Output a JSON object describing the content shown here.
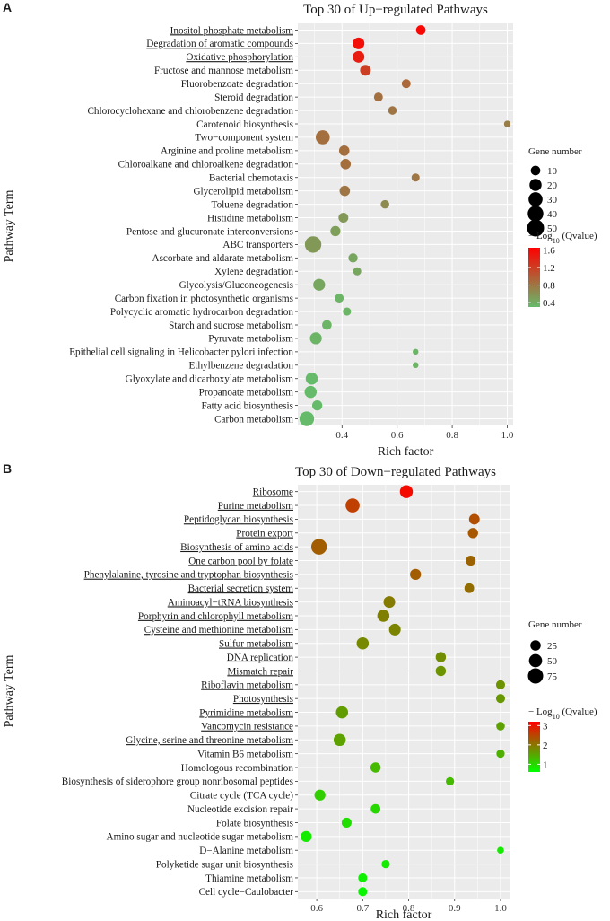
{
  "figure": {
    "colors": {
      "panel_bg": "#EBEBEB",
      "grid": "#FFFFFF"
    },
    "chart_data": [
      {
        "panel_label": "A",
        "type": "scatter",
        "title": "Top 30 of Up−regulated Pathways",
        "xlabel": "Rich factor",
        "ylabel": "Pathway Term",
        "xlim": [
          0.2395,
          1.0212
        ],
        "xticks": [
          0.4,
          0.6,
          0.8,
          1.0
        ],
        "xtick_labels": [
          "0.4",
          "0.6",
          "0.8",
          "1.0"
        ],
        "color_low": "#66BB6A",
        "color_high": "#FF0000",
        "color_range": [
          0.3,
          1.65
        ],
        "color_breaks": [
          0.4,
          0.8,
          1.2,
          1.6
        ],
        "color_break_labels": [
          "0.4",
          "0.8",
          "1.2",
          "1.6"
        ],
        "color_title": "− Log",
        "color_title_sub": "10",
        "color_title_suffix": " (Qvalue)",
        "size_title": "Gene number",
        "size_breaks": [
          10,
          20,
          30,
          40,
          50
        ],
        "size_labels": [
          "10",
          "20",
          "30",
          "40",
          "50"
        ],
        "size_domain": [
          1,
          50
        ],
        "size_range": [
          2.2,
          9.5
        ],
        "points": [
          {
            "term": "Inositol phosphate metabolism",
            "underline": true,
            "x": 0.686,
            "genes": 10,
            "q": 1.6
          },
          {
            "term": "Degradation of aromatic compounds",
            "underline": true,
            "x": 0.46,
            "genes": 18,
            "q": 1.55
          },
          {
            "term": "Oxidative phosphorylation",
            "underline": true,
            "x": 0.46,
            "genes": 18,
            "q": 1.45
          },
          {
            "term": "Fructose and mannose metabolism",
            "underline": false,
            "x": 0.485,
            "genes": 14,
            "q": 1.2
          },
          {
            "term": "Fluorobenzoate degradation",
            "underline": false,
            "x": 0.633,
            "genes": 8,
            "q": 0.9
          },
          {
            "term": "Steroid degradation",
            "underline": false,
            "x": 0.532,
            "genes": 8,
            "q": 0.85
          },
          {
            "term": "Chlorocyclohexane and chlorobenzene degradation",
            "underline": false,
            "x": 0.583,
            "genes": 7,
            "q": 0.8
          },
          {
            "term": "Carotenoid biosynthesis",
            "underline": false,
            "x": 1.0,
            "genes": 3,
            "q": 0.75
          },
          {
            "term": "Two−component system",
            "underline": false,
            "x": 0.33,
            "genes": 30,
            "q": 0.85
          },
          {
            "term": "Arginine and proline metabolism",
            "underline": false,
            "x": 0.408,
            "genes": 13,
            "q": 0.85
          },
          {
            "term": "Chloroalkane and chloroalkene degradation",
            "underline": false,
            "x": 0.413,
            "genes": 13,
            "q": 0.85
          },
          {
            "term": "Bacterial chemotaxis",
            "underline": false,
            "x": 0.667,
            "genes": 6,
            "q": 0.8
          },
          {
            "term": "Glycerolipid metabolism",
            "underline": false,
            "x": 0.41,
            "genes": 13,
            "q": 0.8
          },
          {
            "term": "Toluene degradation",
            "underline": false,
            "x": 0.556,
            "genes": 7,
            "q": 0.65
          },
          {
            "term": "Histidine metabolism",
            "underline": false,
            "x": 0.405,
            "genes": 11,
            "q": 0.55
          },
          {
            "term": "Pentose and glucuronate interconversions",
            "underline": false,
            "x": 0.376,
            "genes": 12,
            "q": 0.5
          },
          {
            "term": "ABC transporters",
            "underline": false,
            "x": 0.295,
            "genes": 46,
            "q": 0.55
          },
          {
            "term": "Ascorbate and aldarate metabolism",
            "underline": false,
            "x": 0.44,
            "genes": 9,
            "q": 0.45
          },
          {
            "term": "Xylene degradation",
            "underline": false,
            "x": 0.455,
            "genes": 6,
            "q": 0.45
          },
          {
            "term": "Glycolysis/Gluconeogenesis",
            "underline": false,
            "x": 0.317,
            "genes": 19,
            "q": 0.45
          },
          {
            "term": "Carbon fixation in photosynthetic organisms",
            "underline": false,
            "x": 0.39,
            "genes": 8,
            "q": 0.35
          },
          {
            "term": "Polycyclic aromatic hydrocarbon degradation",
            "underline": false,
            "x": 0.418,
            "genes": 6,
            "q": 0.35
          },
          {
            "term": "Starch and sucrose metabolism",
            "underline": false,
            "x": 0.345,
            "genes": 10,
            "q": 0.35
          },
          {
            "term": "Pyruvate metabolism",
            "underline": false,
            "x": 0.305,
            "genes": 19,
            "q": 0.35
          },
          {
            "term": "Epithelial cell signaling in Helicobacter pylori infection",
            "underline": false,
            "x": 0.667,
            "genes": 2,
            "q": 0.35
          },
          {
            "term": "Ethylbenzene degradation",
            "underline": false,
            "x": 0.667,
            "genes": 2,
            "q": 0.35
          },
          {
            "term": "Glyoxylate and dicarboxylate metabolism",
            "underline": false,
            "x": 0.29,
            "genes": 20,
            "q": 0.3
          },
          {
            "term": "Propanoate metabolism",
            "underline": false,
            "x": 0.286,
            "genes": 20,
            "q": 0.3
          },
          {
            "term": "Fatty acid biosynthesis",
            "underline": false,
            "x": 0.31,
            "genes": 12,
            "q": 0.3
          },
          {
            "term": "Carbon metabolism",
            "underline": false,
            "x": 0.272,
            "genes": 34,
            "q": 0.3
          }
        ]
      },
      {
        "panel_label": "B",
        "type": "scatter",
        "title": "Top 30 of Down−regulated Pathways",
        "xlabel": "Rich factor",
        "ylabel": "Pathway Term",
        "xlim": [
          0.5588,
          1.0196
        ],
        "xticks": [
          0.6,
          0.7,
          0.8,
          0.9,
          1.0
        ],
        "xtick_labels": [
          "0.6",
          "0.7",
          "0.8",
          "0.9",
          "1.0"
        ],
        "color_low": "#00FF00",
        "color_high": "#FF0000",
        "color_range": [
          0.6,
          3.2
        ],
        "color_breaks": [
          1,
          2,
          3
        ],
        "color_break_labels": [
          "1",
          "2",
          "3"
        ],
        "color_title": "− Log",
        "color_title_sub": "10",
        "color_title_suffix": " (Qvalue)",
        "size_title": "Gene number",
        "size_breaks": [
          25,
          50,
          75
        ],
        "size_labels": [
          "25",
          "50",
          "75"
        ],
        "size_domain": [
          1,
          75
        ],
        "size_range": [
          2.2,
          8.5
        ],
        "points": [
          {
            "term": "Ribosome",
            "underline": true,
            "x": 0.795,
            "genes": 48,
            "q": 3.1
          },
          {
            "term": "Purine metabolism",
            "underline": true,
            "x": 0.678,
            "genes": 60,
            "q": 2.55
          },
          {
            "term": "Peptidoglycan biosynthesis",
            "underline": true,
            "x": 0.943,
            "genes": 27,
            "q": 2.4
          },
          {
            "term": "Protein export",
            "underline": true,
            "x": 0.94,
            "genes": 24,
            "q": 2.3
          },
          {
            "term": "Biosynthesis of amino acids",
            "underline": true,
            "x": 0.605,
            "genes": 80,
            "q": 2.25
          },
          {
            "term": "One carbon pool by folate",
            "underline": true,
            "x": 0.935,
            "genes": 22,
            "q": 2.2
          },
          {
            "term": "Phenylalanine, tyrosine and tryptophan biosynthesis",
            "underline": true,
            "x": 0.815,
            "genes": 30,
            "q": 2.25
          },
          {
            "term": "Bacterial secretion system",
            "underline": true,
            "x": 0.932,
            "genes": 20,
            "q": 2.1
          },
          {
            "term": "Aminoacyl−tRNA biosynthesis",
            "underline": true,
            "x": 0.758,
            "genes": 36,
            "q": 1.95
          },
          {
            "term": "Porphyrin and chlorophyll metabolism",
            "underline": true,
            "x": 0.745,
            "genes": 40,
            "q": 1.9
          },
          {
            "term": "Cysteine and methionine metabolism",
            "underline": true,
            "x": 0.77,
            "genes": 36,
            "q": 1.85
          },
          {
            "term": "Sulfur metabolism",
            "underline": true,
            "x": 0.7,
            "genes": 40,
            "q": 1.8
          },
          {
            "term": "DNA replication",
            "underline": true,
            "x": 0.87,
            "genes": 24,
            "q": 1.75
          },
          {
            "term": "Mismatch repair",
            "underline": true,
            "x": 0.87,
            "genes": 24,
            "q": 1.7
          },
          {
            "term": "Riboflavin metabolism",
            "underline": true,
            "x": 1.0,
            "genes": 16,
            "q": 1.7
          },
          {
            "term": "Photosynthesis",
            "underline": true,
            "x": 1.0,
            "genes": 16,
            "q": 1.65
          },
          {
            "term": "Pyrimidine metabolism",
            "underline": true,
            "x": 0.655,
            "genes": 40,
            "q": 1.6
          },
          {
            "term": "Vancomycin resistance",
            "underline": true,
            "x": 1.0,
            "genes": 14,
            "q": 1.55
          },
          {
            "term": "Glycine, serine and threonine metabolism",
            "underline": true,
            "x": 0.65,
            "genes": 40,
            "q": 1.55
          },
          {
            "term": "Vitamin B6 metabolism",
            "underline": false,
            "x": 1.0,
            "genes": 12,
            "q": 1.4
          },
          {
            "term": "Homologous recombination",
            "underline": false,
            "x": 0.728,
            "genes": 24,
            "q": 1.3
          },
          {
            "term": "Biosynthesis of siderophore group nonribosomal peptides",
            "underline": false,
            "x": 0.89,
            "genes": 12,
            "q": 1.3
          },
          {
            "term": "Citrate cycle (TCA cycle)",
            "underline": false,
            "x": 0.607,
            "genes": 30,
            "q": 1.1
          },
          {
            "term": "Nucleotide excision repair",
            "underline": false,
            "x": 0.728,
            "genes": 20,
            "q": 1.0
          },
          {
            "term": "Folate biosynthesis",
            "underline": false,
            "x": 0.665,
            "genes": 22,
            "q": 0.95
          },
          {
            "term": "Amino sugar and nucleotide sugar metabolism",
            "underline": false,
            "x": 0.577,
            "genes": 30,
            "q": 0.8
          },
          {
            "term": "D−Alanine metabolism",
            "underline": false,
            "x": 1.0,
            "genes": 6,
            "q": 0.8
          },
          {
            "term": "Polyketide sugar unit biosynthesis",
            "underline": false,
            "x": 0.75,
            "genes": 12,
            "q": 0.8
          },
          {
            "term": "Thiamine metabolism",
            "underline": false,
            "x": 0.7,
            "genes": 16,
            "q": 0.75
          },
          {
            "term": "Cell cycle−Caulobacter",
            "underline": false,
            "x": 0.7,
            "genes": 16,
            "q": 0.7
          }
        ]
      }
    ]
  }
}
